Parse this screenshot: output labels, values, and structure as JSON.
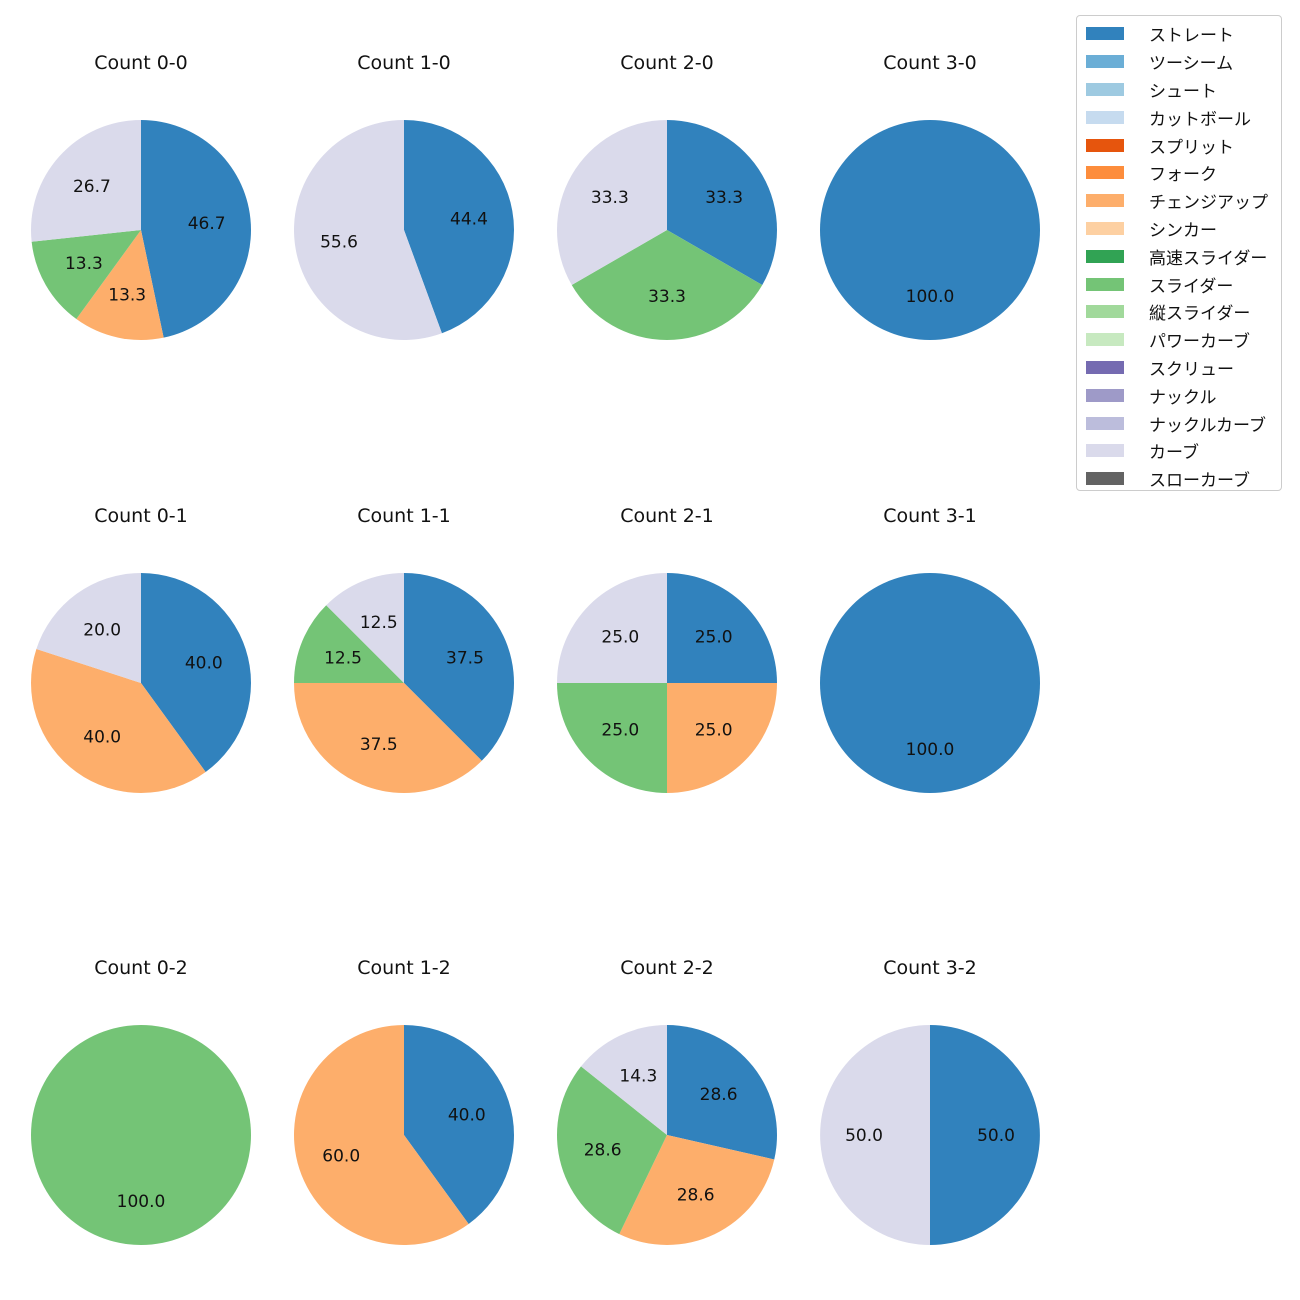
{
  "chart_data": {
    "type": "pie",
    "series_names": [
      "ストレート",
      "ツーシーム",
      "シュート",
      "カットボール",
      "スプリット",
      "フォーク",
      "チェンジアップ",
      "シンカー",
      "高速スライダー",
      "スライダー",
      "縦スライダー",
      "パワーカーブ",
      "スクリュー",
      "ナックル",
      "ナックルカーブ",
      "カーブ",
      "スローカーブ"
    ],
    "colors": [
      "#3182bd",
      "#6baed6",
      "#9ecae1",
      "#c6dbef",
      "#e6550d",
      "#fd8d3c",
      "#fdae6b",
      "#fdd0a2",
      "#31a354",
      "#74c476",
      "#a1d99b",
      "#c7e9c0",
      "#756bb1",
      "#9e9ac8",
      "#bcbddc",
      "#dadaeb",
      "#636363"
    ],
    "legend_position": "top-right",
    "charts": [
      {
        "title": "Count 0-0",
        "slices": [
          {
            "name": "ストレート",
            "value": 46.7,
            "label": "46.7"
          },
          {
            "name": "チェンジアップ",
            "value": 13.3,
            "label": "13.3"
          },
          {
            "name": "スライダー",
            "value": 13.3,
            "label": "13.3"
          },
          {
            "name": "カーブ",
            "value": 26.7,
            "label": "26.7"
          }
        ]
      },
      {
        "title": "Count 1-0",
        "slices": [
          {
            "name": "ストレート",
            "value": 44.4,
            "label": "44.4"
          },
          {
            "name": "カーブ",
            "value": 55.6,
            "label": "55.6"
          }
        ]
      },
      {
        "title": "Count 2-0",
        "slices": [
          {
            "name": "ストレート",
            "value": 33.3,
            "label": "33.3"
          },
          {
            "name": "スライダー",
            "value": 33.3,
            "label": "33.3"
          },
          {
            "name": "カーブ",
            "value": 33.3,
            "label": "33.3"
          }
        ]
      },
      {
        "title": "Count 3-0",
        "slices": [
          {
            "name": "ストレート",
            "value": 100.0,
            "label": "100.0"
          }
        ]
      },
      {
        "title": "Count 0-1",
        "slices": [
          {
            "name": "ストレート",
            "value": 40.0,
            "label": "40.0"
          },
          {
            "name": "チェンジアップ",
            "value": 40.0,
            "label": "40.0"
          },
          {
            "name": "カーブ",
            "value": 20.0,
            "label": "20.0"
          }
        ]
      },
      {
        "title": "Count 1-1",
        "slices": [
          {
            "name": "ストレート",
            "value": 37.5,
            "label": "37.5"
          },
          {
            "name": "チェンジアップ",
            "value": 37.5,
            "label": "37.5"
          },
          {
            "name": "スライダー",
            "value": 12.5,
            "label": "12.5"
          },
          {
            "name": "カーブ",
            "value": 12.5,
            "label": "12.5"
          }
        ]
      },
      {
        "title": "Count 2-1",
        "slices": [
          {
            "name": "ストレート",
            "value": 25.0,
            "label": "25.0"
          },
          {
            "name": "チェンジアップ",
            "value": 25.0,
            "label": "25.0"
          },
          {
            "name": "スライダー",
            "value": 25.0,
            "label": "25.0"
          },
          {
            "name": "カーブ",
            "value": 25.0,
            "label": "25.0"
          }
        ]
      },
      {
        "title": "Count 3-1",
        "slices": [
          {
            "name": "ストレート",
            "value": 100.0,
            "label": "100.0"
          }
        ]
      },
      {
        "title": "Count 0-2",
        "slices": [
          {
            "name": "スライダー",
            "value": 100.0,
            "label": "100.0"
          }
        ]
      },
      {
        "title": "Count 1-2",
        "slices": [
          {
            "name": "ストレート",
            "value": 40.0,
            "label": "40.0"
          },
          {
            "name": "チェンジアップ",
            "value": 60.0,
            "label": "60.0"
          }
        ]
      },
      {
        "title": "Count 2-2",
        "slices": [
          {
            "name": "ストレート",
            "value": 28.6,
            "label": "28.6"
          },
          {
            "name": "チェンジアップ",
            "value": 28.6,
            "label": "28.6"
          },
          {
            "name": "スライダー",
            "value": 28.6,
            "label": "28.6"
          },
          {
            "name": "カーブ",
            "value": 14.3,
            "label": "14.3"
          }
        ]
      },
      {
        "title": "Count 3-2",
        "slices": [
          {
            "name": "ストレート",
            "value": 50.0,
            "label": "50.0"
          },
          {
            "name": "カーブ",
            "value": 50.0,
            "label": "50.0"
          }
        ]
      }
    ]
  }
}
